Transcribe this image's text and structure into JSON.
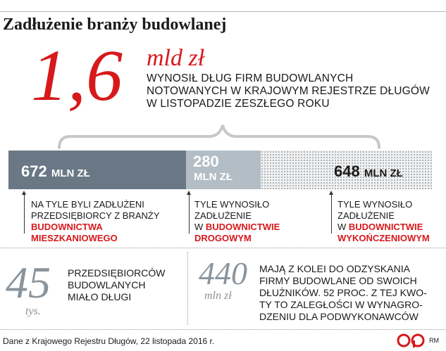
{
  "title": "Zadłużenie branży budowlanej",
  "headline": {
    "value": "1,6",
    "unit": "mld zł",
    "description": [
      "WYNOSIŁ DŁUG FIRM BUDOWLANYCH",
      "NOTOWANYCH W KRAJOWYM REJESTRZE DŁUGÓW",
      "W LISTOPADZIE ZESZŁEGO ROKU"
    ]
  },
  "chart_data": {
    "type": "bar",
    "orientation": "horizontal-stacked",
    "total": 1600,
    "unit": "mln zł",
    "categories": [
      "mieszkaniowe",
      "drogowe",
      "wykończeniowe"
    ],
    "values": [
      672,
      280,
      648
    ],
    "colors": [
      "#697884",
      "#b3bdc5",
      "#dedede"
    ],
    "segments": [
      {
        "value_label": "672",
        "unit_label": "MLN ZŁ",
        "note_lines": [
          "NA TYLE BYLI ZADŁUŻENI",
          "PRZEDSIĘBIORCY Z BRANŻY"
        ],
        "highlight_lines": [
          "BUDOWNICTWA",
          "MIESZKANIOWEGO"
        ],
        "highlight_prefix": ""
      },
      {
        "value_label": "280",
        "unit_label": "MLN ZŁ",
        "note_lines": [
          "TYLE WYNOSIŁO",
          "ZADŁUŻENIE"
        ],
        "highlight_prefix": "W ",
        "highlight_lines": [
          "BUDOWNICTWIE",
          "DROGOWYM"
        ]
      },
      {
        "value_label": "648",
        "unit_label": "MLN ZŁ",
        "note_lines": [
          "TYLE WYNOSIŁO",
          "ZADŁUŻENIE"
        ],
        "highlight_prefix": "W ",
        "highlight_lines": [
          "BUDOWNICTWIE",
          "WYKOŃCZENIOWYM"
        ]
      }
    ]
  },
  "stats": [
    {
      "value": "45",
      "unit": "tys.",
      "text": [
        "PRZEDSIĘBIORCÓW",
        "BUDOWLANYCH",
        "MIAŁO DŁUGI"
      ]
    },
    {
      "value": "440",
      "unit": "mln zł",
      "text": [
        "MAJĄ Z KOLEI DO ODZYSKANIA",
        "FIRMY BUDOWLANE OD SWOICH",
        "DŁUŻNIKÓW. 52 PROC. Z TEJ KWO-",
        "TY TO ZALEGŁOŚCI W WYNAGRO-",
        "DZENIU DLA PODWYKONAWCÓW"
      ]
    }
  ],
  "source": "Dane z Krajowego Rejestru Długów, 22 listopada 2016 r.",
  "logo": {
    "text": "cp",
    "credit": "RM",
    "color": "#d7191c"
  }
}
